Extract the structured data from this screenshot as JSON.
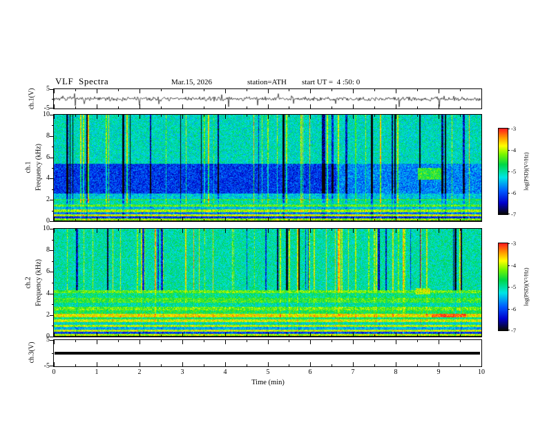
{
  "header": {
    "title": "VLF  Spectra",
    "date": "Mar.15, 2026",
    "station": "station=ATH",
    "start_ut": "start UT =  4 :50: 0"
  },
  "xaxis": {
    "label": "Time  (min)",
    "lim": [
      0,
      10
    ],
    "ticks": [
      0,
      1,
      2,
      3,
      4,
      5,
      6,
      7,
      8,
      9,
      10
    ]
  },
  "colorbars": [
    {
      "label": "log(PSD)(V²/Hz)",
      "lim": [
        -7,
        -3
      ],
      "ticks": [
        -3,
        -4,
        -5,
        -6,
        -7
      ]
    },
    {
      "label": "log(PSD)(V²/Hz)",
      "lim": [
        -7,
        -3
      ],
      "ticks": [
        -3,
        -4,
        -5,
        -6,
        -7
      ]
    }
  ],
  "chart_data": [
    {
      "id": "ch1-waveform",
      "type": "line",
      "ylabel": "ch.1(V)",
      "ylim": [
        -5,
        5
      ],
      "yticks": [
        5,
        -5
      ],
      "xlim_min": [
        0,
        10
      ],
      "baseline_v": 0,
      "typical_peak_to_peak_v": 2,
      "spike_minima_v": -4,
      "summary": "Continuous noisy broadband voltage trace centered on 0 V with sporadic impulsive negative spikes reaching about -4 V over the 10 minute record"
    },
    {
      "id": "ch1-spectrogram",
      "type": "heatmap",
      "ylabel": "ch.1",
      "ylabel2": "Frequency  (kHz)",
      "ylim": [
        0,
        10
      ],
      "yticks": [
        0,
        2,
        4,
        6,
        8,
        10
      ],
      "zlim": [
        -7,
        -3
      ],
      "zunits": "log(PSD)(V²/Hz)",
      "features": [
        "Black band of no power below ~0.15 kHz",
        "Bright narrowband hum lines near 0.2, 0.6, 1.0, 1.5 and 2.0 kHz with log PSD ≈ -4",
        "Broad low-power dark blue region from ~2.6 to ~5.4 kHz with log PSD ≈ -6, slightly weaker after ~6.5 min",
        "Green/cyan background (log PSD ≈ -5.2) from ~5.4 to 10 kHz",
        "Dense vertical bright impulsive streaks and dark dropout streaks spanning all frequencies",
        "Localized enhanced green patch near 8.5-9.0 min between ~4 and 5 kHz"
      ]
    },
    {
      "id": "ch2-spectrogram",
      "type": "heatmap",
      "ylabel": "ch.2",
      "ylabel2": "Frequency  (kHz)",
      "ylim": [
        0,
        10
      ],
      "yticks": [
        0,
        2,
        4,
        6,
        8,
        10
      ],
      "zlim": [
        -7,
        -3
      ],
      "zunits": "log(PSD)(V²/Hz)",
      "features": [
        "Black band of no power below ~0.15 kHz",
        "Strong yellow hum lines near 0.2, 0.6, 1.0, 1.4-1.6 and 1.9-2.1 kHz with log PSD -4 to -3.5",
        "Intermittent red segments (log PSD ≈ -3.2) along the ~2 kHz line",
        "Yellow-green bands near 2.5-2.8, 3.2-3.6 and ~4.3 kHz",
        "Green background with blue dropout streaks above ~4.5 kHz",
        "Enhanced yellow-green patch near 8.5-8.8 min at ~4-4.5 kHz"
      ]
    },
    {
      "id": "ch3-waveform",
      "type": "line",
      "ylabel": "ch.3(V)",
      "ylim": [
        -5,
        5
      ],
      "yticks": [
        5,
        -5
      ],
      "constant_v": 0,
      "summary": "Flat thick trace at 0 V for the entire 10 minutes (channel inactive)"
    }
  ]
}
